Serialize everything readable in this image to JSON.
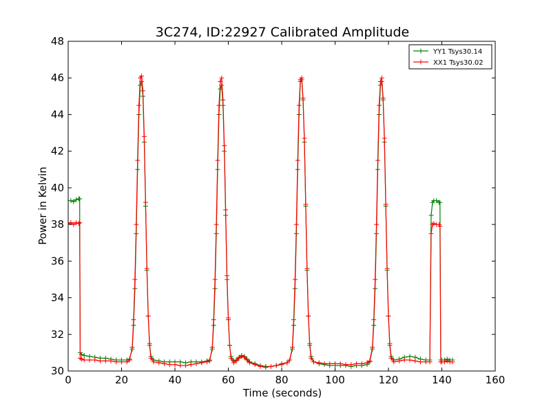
{
  "chart_data": {
    "type": "line",
    "title": "3C274, ID:22927 Calibrated Amplitude",
    "xlabel": "Time (seconds)",
    "ylabel": "Power in Kelvin",
    "xlim": [
      0,
      160
    ],
    "ylim": [
      30,
      48
    ],
    "xticks": [
      0,
      20,
      40,
      60,
      80,
      100,
      120,
      140,
      160
    ],
    "yticks": [
      30,
      32,
      34,
      36,
      38,
      40,
      42,
      44,
      46,
      48
    ],
    "grid": false,
    "legend_position": "top-right",
    "marker": "plus",
    "series": [
      {
        "name": "YY1 Tsys30.14",
        "color": "#008000",
        "points": [
          [
            0,
            39.3
          ],
          [
            1,
            39.3
          ],
          [
            2,
            39.25
          ],
          [
            3,
            39.35
          ],
          [
            4,
            39.4
          ],
          [
            4.3,
            39.4
          ],
          [
            4.5,
            31.0
          ],
          [
            5,
            30.9
          ],
          [
            6,
            30.85
          ],
          [
            8,
            30.8
          ],
          [
            10,
            30.75
          ],
          [
            12,
            30.7
          ],
          [
            14,
            30.7
          ],
          [
            16,
            30.65
          ],
          [
            18,
            30.6
          ],
          [
            20,
            30.6
          ],
          [
            22,
            30.6
          ],
          [
            23,
            30.65
          ],
          [
            24,
            31.2
          ],
          [
            24.5,
            32.5
          ],
          [
            25,
            34.5
          ],
          [
            25.5,
            37.5
          ],
          [
            26,
            41.0
          ],
          [
            26.5,
            44.0
          ],
          [
            27,
            45.6
          ],
          [
            27.5,
            45.8
          ],
          [
            28,
            45.0
          ],
          [
            28.5,
            42.5
          ],
          [
            29,
            39.0
          ],
          [
            29.5,
            35.5
          ],
          [
            30,
            33.0
          ],
          [
            30.5,
            31.5
          ],
          [
            31,
            30.8
          ],
          [
            32,
            30.6
          ],
          [
            34,
            30.55
          ],
          [
            36,
            30.5
          ],
          [
            38,
            30.5
          ],
          [
            40,
            30.5
          ],
          [
            42,
            30.5
          ],
          [
            44,
            30.45
          ],
          [
            46,
            30.5
          ],
          [
            48,
            30.5
          ],
          [
            50,
            30.5
          ],
          [
            52,
            30.55
          ],
          [
            53,
            30.6
          ],
          [
            54,
            31.2
          ],
          [
            54.5,
            32.5
          ],
          [
            55,
            34.5
          ],
          [
            55.5,
            37.5
          ],
          [
            56,
            41.0
          ],
          [
            56.5,
            44.0
          ],
          [
            57,
            45.4
          ],
          [
            57.5,
            45.6
          ],
          [
            58,
            44.5
          ],
          [
            58.5,
            42.0
          ],
          [
            59,
            38.5
          ],
          [
            59.5,
            35.0
          ],
          [
            60,
            32.8
          ],
          [
            60.5,
            31.4
          ],
          [
            61,
            30.8
          ],
          [
            62,
            30.55
          ],
          [
            63,
            30.6
          ],
          [
            64,
            30.75
          ],
          [
            65,
            30.85
          ],
          [
            66,
            30.8
          ],
          [
            67,
            30.65
          ],
          [
            68,
            30.5
          ],
          [
            70,
            30.4
          ],
          [
            72,
            30.3
          ],
          [
            74,
            30.25
          ],
          [
            76,
            30.25
          ],
          [
            78,
            30.3
          ],
          [
            80,
            30.4
          ],
          [
            82,
            30.45
          ],
          [
            83,
            30.6
          ],
          [
            84,
            31.2
          ],
          [
            84.5,
            32.5
          ],
          [
            85,
            34.5
          ],
          [
            85.5,
            37.5
          ],
          [
            86,
            41.0
          ],
          [
            86.5,
            44.0
          ],
          [
            87,
            45.8
          ],
          [
            87.5,
            45.9
          ],
          [
            88,
            44.8
          ],
          [
            88.5,
            42.5
          ],
          [
            89,
            39.0
          ],
          [
            89.5,
            35.5
          ],
          [
            90,
            33.0
          ],
          [
            90.5,
            31.5
          ],
          [
            91,
            30.8
          ],
          [
            92,
            30.5
          ],
          [
            94,
            30.4
          ],
          [
            96,
            30.35
          ],
          [
            98,
            30.3
          ],
          [
            100,
            30.3
          ],
          [
            102,
            30.3
          ],
          [
            104,
            30.3
          ],
          [
            106,
            30.25
          ],
          [
            108,
            30.3
          ],
          [
            110,
            30.3
          ],
          [
            112,
            30.35
          ],
          [
            113,
            30.5
          ],
          [
            114,
            31.2
          ],
          [
            114.5,
            32.5
          ],
          [
            115,
            34.5
          ],
          [
            115.5,
            37.5
          ],
          [
            116,
            41.0
          ],
          [
            116.5,
            44.0
          ],
          [
            117,
            45.6
          ],
          [
            117.5,
            45.8
          ],
          [
            118,
            44.8
          ],
          [
            118.5,
            42.5
          ],
          [
            119,
            39.0
          ],
          [
            119.5,
            35.5
          ],
          [
            120,
            33.0
          ],
          [
            120.5,
            31.5
          ],
          [
            121,
            30.8
          ],
          [
            122,
            30.6
          ],
          [
            124,
            30.65
          ],
          [
            126,
            30.75
          ],
          [
            128,
            30.8
          ],
          [
            130,
            30.75
          ],
          [
            132,
            30.65
          ],
          [
            134,
            30.6
          ],
          [
            135.5,
            30.6
          ],
          [
            136,
            38.5
          ],
          [
            136.5,
            39.2
          ],
          [
            137,
            39.3
          ],
          [
            138,
            39.3
          ],
          [
            139,
            39.2
          ],
          [
            139.3,
            39.2
          ],
          [
            139.6,
            30.6
          ],
          [
            140,
            30.6
          ],
          [
            141,
            30.6
          ],
          [
            142,
            30.65
          ],
          [
            143,
            30.6
          ],
          [
            144,
            30.6
          ]
        ]
      },
      {
        "name": "XX1 Tsys30.02",
        "color": "#ff0000",
        "points": [
          [
            0,
            38.05
          ],
          [
            1,
            38.1
          ],
          [
            2,
            38.0
          ],
          [
            3,
            38.1
          ],
          [
            4,
            38.05
          ],
          [
            4.3,
            38.1
          ],
          [
            4.5,
            30.7
          ],
          [
            5,
            30.65
          ],
          [
            6,
            30.6
          ],
          [
            8,
            30.6
          ],
          [
            10,
            30.6
          ],
          [
            12,
            30.55
          ],
          [
            14,
            30.55
          ],
          [
            16,
            30.55
          ],
          [
            18,
            30.5
          ],
          [
            20,
            30.5
          ],
          [
            22,
            30.5
          ],
          [
            23,
            30.6
          ],
          [
            24,
            31.3
          ],
          [
            24.5,
            32.8
          ],
          [
            25,
            35.0
          ],
          [
            25.5,
            38.0
          ],
          [
            26,
            41.5
          ],
          [
            26.5,
            44.5
          ],
          [
            27,
            46.0
          ],
          [
            27.5,
            46.1
          ],
          [
            28,
            45.3
          ],
          [
            28.5,
            42.8
          ],
          [
            29,
            39.2
          ],
          [
            29.5,
            35.6
          ],
          [
            30,
            33.0
          ],
          [
            30.5,
            31.4
          ],
          [
            31,
            30.7
          ],
          [
            32,
            30.5
          ],
          [
            34,
            30.45
          ],
          [
            36,
            30.4
          ],
          [
            38,
            30.35
          ],
          [
            40,
            30.35
          ],
          [
            42,
            30.3
          ],
          [
            44,
            30.3
          ],
          [
            46,
            30.35
          ],
          [
            48,
            30.4
          ],
          [
            50,
            30.45
          ],
          [
            52,
            30.5
          ],
          [
            53,
            30.55
          ],
          [
            54,
            31.3
          ],
          [
            54.5,
            32.8
          ],
          [
            55,
            35.0
          ],
          [
            55.5,
            38.0
          ],
          [
            56,
            41.5
          ],
          [
            56.5,
            44.5
          ],
          [
            57,
            45.8
          ],
          [
            57.5,
            46.0
          ],
          [
            58,
            44.8
          ],
          [
            58.5,
            42.3
          ],
          [
            59,
            38.8
          ],
          [
            59.5,
            35.2
          ],
          [
            60,
            32.9
          ],
          [
            60.5,
            31.4
          ],
          [
            61,
            30.7
          ],
          [
            62,
            30.45
          ],
          [
            63,
            30.55
          ],
          [
            64,
            30.7
          ],
          [
            65,
            30.8
          ],
          [
            66,
            30.75
          ],
          [
            67,
            30.6
          ],
          [
            68,
            30.45
          ],
          [
            70,
            30.35
          ],
          [
            72,
            30.25
          ],
          [
            74,
            30.2
          ],
          [
            76,
            30.25
          ],
          [
            78,
            30.3
          ],
          [
            80,
            30.35
          ],
          [
            82,
            30.45
          ],
          [
            83,
            30.6
          ],
          [
            84,
            31.3
          ],
          [
            84.5,
            32.8
          ],
          [
            85,
            35.0
          ],
          [
            85.5,
            38.0
          ],
          [
            86,
            41.5
          ],
          [
            86.5,
            44.5
          ],
          [
            87,
            45.9
          ],
          [
            87.5,
            46.0
          ],
          [
            88,
            44.9
          ],
          [
            88.5,
            42.7
          ],
          [
            89,
            39.1
          ],
          [
            89.5,
            35.6
          ],
          [
            90,
            33.0
          ],
          [
            90.5,
            31.4
          ],
          [
            91,
            30.7
          ],
          [
            92,
            30.5
          ],
          [
            94,
            30.45
          ],
          [
            96,
            30.4
          ],
          [
            98,
            30.4
          ],
          [
            100,
            30.4
          ],
          [
            102,
            30.4
          ],
          [
            104,
            30.35
          ],
          [
            106,
            30.35
          ],
          [
            108,
            30.4
          ],
          [
            110,
            30.4
          ],
          [
            112,
            30.45
          ],
          [
            113,
            30.55
          ],
          [
            114,
            31.3
          ],
          [
            114.5,
            32.8
          ],
          [
            115,
            35.0
          ],
          [
            115.5,
            38.0
          ],
          [
            116,
            41.5
          ],
          [
            116.5,
            44.5
          ],
          [
            117,
            45.8
          ],
          [
            117.5,
            46.0
          ],
          [
            118,
            44.9
          ],
          [
            118.5,
            42.7
          ],
          [
            119,
            39.1
          ],
          [
            119.5,
            35.6
          ],
          [
            120,
            33.0
          ],
          [
            120.5,
            31.4
          ],
          [
            121,
            30.7
          ],
          [
            122,
            30.5
          ],
          [
            124,
            30.55
          ],
          [
            126,
            30.6
          ],
          [
            128,
            30.6
          ],
          [
            130,
            30.55
          ],
          [
            132,
            30.5
          ],
          [
            134,
            30.5
          ],
          [
            135.5,
            30.5
          ],
          [
            136,
            37.5
          ],
          [
            136.5,
            38.0
          ],
          [
            137,
            38.05
          ],
          [
            138,
            38.0
          ],
          [
            139,
            38.0
          ],
          [
            139.3,
            37.9
          ],
          [
            139.6,
            30.5
          ],
          [
            140,
            30.5
          ],
          [
            141,
            30.5
          ],
          [
            142,
            30.55
          ],
          [
            143,
            30.5
          ],
          [
            144,
            30.5
          ]
        ]
      }
    ]
  }
}
